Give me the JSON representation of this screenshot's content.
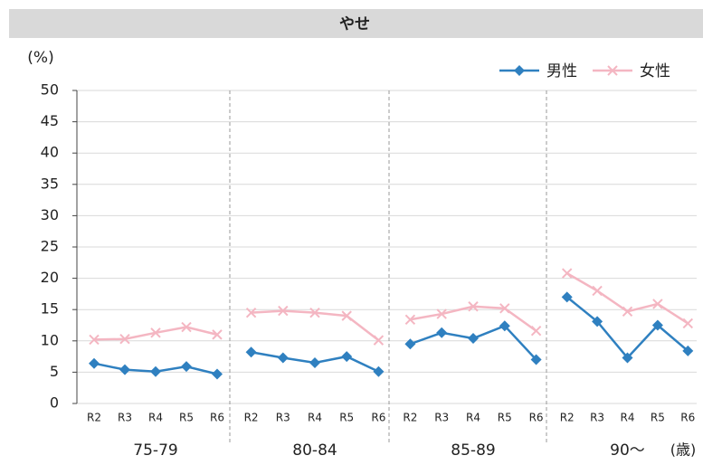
{
  "chart_data": {
    "type": "line",
    "title": "やせ",
    "y_label": "(%)",
    "x_unit": "(歳)",
    "groups": [
      "75-79",
      "80-84",
      "85-89",
      "90〜"
    ],
    "categories": [
      "R2",
      "R3",
      "R4",
      "R5",
      "R6"
    ],
    "series": [
      {
        "name": "男性",
        "color": "#2f80c0",
        "marker": "diamond",
        "values": [
          [
            6.4,
            5.4,
            5.1,
            5.9,
            4.7
          ],
          [
            8.2,
            7.3,
            6.5,
            7.5,
            5.1
          ],
          [
            9.5,
            11.3,
            10.4,
            12.4,
            7.0
          ],
          [
            17.0,
            13.1,
            7.3,
            12.5,
            8.4
          ]
        ]
      },
      {
        "name": "女性",
        "color": "#f4b6c2",
        "marker": "x",
        "values": [
          [
            10.2,
            10.3,
            11.3,
            12.2,
            11.0
          ],
          [
            14.5,
            14.8,
            14.5,
            14.0,
            10.1
          ],
          [
            13.4,
            14.3,
            15.5,
            15.2,
            11.6
          ],
          [
            20.8,
            18.0,
            14.7,
            15.9,
            12.8
          ]
        ]
      }
    ],
    "ylim": [
      0,
      50
    ],
    "yticks": [
      0,
      5,
      10,
      15,
      20,
      25,
      30,
      35,
      40,
      45,
      50
    ],
    "grid": true,
    "legend": "top-right"
  }
}
